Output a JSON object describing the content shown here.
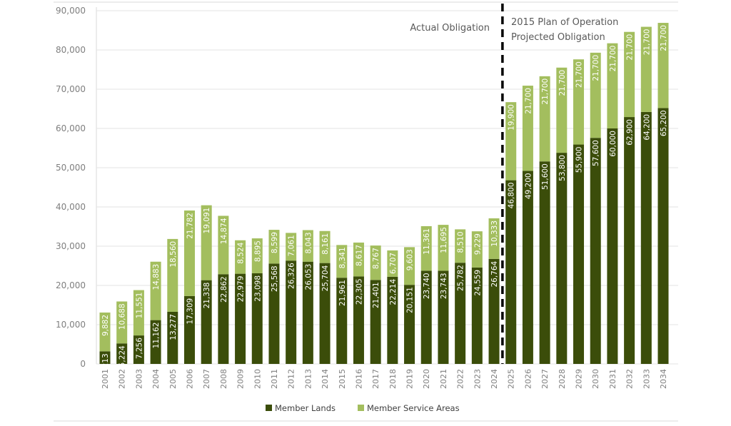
{
  "chart_data": {
    "type": "bar",
    "stacked": true,
    "categories": [
      "2001",
      "2002",
      "2003",
      "2004",
      "2005",
      "2006",
      "2007",
      "2008",
      "2009",
      "2010",
      "2011",
      "2012",
      "2013",
      "2014",
      "2015",
      "2016",
      "2017",
      "2018",
      "2019",
      "2020",
      "2021",
      "2022",
      "2023",
      "2024",
      "2025",
      "2026",
      "2027",
      "2028",
      "2029",
      "2030",
      "2031",
      "2032",
      "2033",
      "2034"
    ],
    "series": [
      {
        "name": "Member Lands",
        "color": "#3b4d0a",
        "values": [
          3213,
          5224,
          7256,
          11162,
          13277,
          17309,
          21338,
          22862,
          22979,
          23098,
          25568,
          26326,
          26053,
          25704,
          21961,
          22305,
          21401,
          22214,
          20151,
          23740,
          23743,
          25782,
          24559,
          26764,
          46800,
          49200,
          51600,
          53800,
          55900,
          57600,
          60000,
          62900,
          64200,
          65200
        ]
      },
      {
        "name": "Member Service Areas",
        "color": "#a3be5e",
        "values": [
          9882,
          10688,
          11551,
          14883,
          18560,
          21782,
          19091,
          14874,
          8524,
          8895,
          8599,
          7061,
          8043,
          8161,
          8341,
          8617,
          8767,
          6707,
          9603,
          11361,
          11695,
          8510,
          9229,
          10333,
          19900,
          21700,
          21700,
          21700,
          21700,
          21700,
          21700,
          21700,
          21700,
          21700
        ]
      }
    ],
    "ylim": [
      0,
      90000
    ],
    "yticks": [
      0,
      10000,
      20000,
      30000,
      40000,
      50000,
      60000,
      70000,
      80000,
      90000
    ],
    "ytick_labels": [
      "0",
      "10,000",
      "20,000",
      "30,000",
      "40,000",
      "50,000",
      "60,000",
      "70,000",
      "80,000",
      "90,000"
    ],
    "grid": true,
    "legend": "bottom",
    "data_labels": true,
    "divider_after": "2024",
    "annotations": {
      "left": "Actual Obligation",
      "right_line1": "2015 Plan of Operation",
      "right_line2": "Projected Obligation"
    }
  }
}
